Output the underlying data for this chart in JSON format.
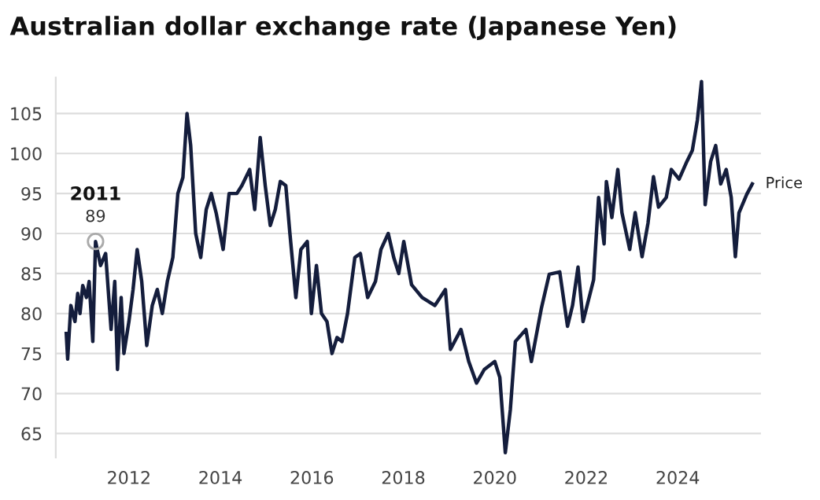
{
  "chart_data": {
    "type": "line",
    "title": "Australian dollar exchange rate (Japanese Yen)",
    "x": [
      2010.63,
      2010.66,
      2010.73,
      2010.82,
      2010.88,
      2010.93,
      2010.99,
      2011.07,
      2011.13,
      2011.21,
      2011.27,
      2011.38,
      2011.49,
      2011.61,
      2011.69,
      2011.75,
      2011.83,
      2011.89,
      2012.0,
      2012.09,
      2012.18,
      2012.28,
      2012.39,
      2012.51,
      2012.62,
      2012.73,
      2012.84,
      2012.96,
      2013.07,
      2013.18,
      2013.27,
      2013.35,
      2013.46,
      2013.57,
      2013.69,
      2013.8,
      2013.91,
      2014.06,
      2014.19,
      2014.36,
      2014.47,
      2014.64,
      2014.75,
      2014.87,
      2014.98,
      2015.09,
      2015.2,
      2015.31,
      2015.43,
      2015.52,
      2015.65,
      2015.76,
      2015.9,
      2015.99,
      2016.1,
      2016.21,
      2016.33,
      2016.44,
      2016.55,
      2016.66,
      2016.78,
      2016.94,
      2017.06,
      2017.22,
      2017.39,
      2017.51,
      2017.67,
      2017.79,
      2017.9,
      2018.01,
      2018.18,
      2018.41,
      2018.69,
      2018.92,
      2019.03,
      2019.26,
      2019.43,
      2019.6,
      2019.77,
      2020.0,
      2020.11,
      2020.23,
      2020.34,
      2020.45,
      2020.68,
      2020.8,
      2021.02,
      2021.19,
      2021.42,
      2021.59,
      2021.7,
      2021.82,
      2021.93,
      2022.16,
      2022.27,
      2022.39,
      2022.44,
      2022.56,
      2022.69,
      2022.78,
      2022.95,
      2023.07,
      2023.22,
      2023.35,
      2023.47,
      2023.58,
      2023.75,
      2023.86,
      2024.03,
      2024.2,
      2024.32,
      2024.43,
      2024.52,
      2024.6,
      2024.72,
      2024.83,
      2024.94,
      2025.06,
      2025.17,
      2025.26,
      2025.34,
      2025.51,
      2025.63
    ],
    "series": [
      {
        "name": "Price",
        "color": "#141d3c",
        "values": [
          77.5,
          74.3,
          81,
          79,
          82.5,
          80,
          83.5,
          82,
          84,
          76.5,
          89,
          86,
          87.5,
          78,
          84,
          73,
          82,
          75,
          79,
          83,
          88,
          84,
          76,
          81,
          83,
          80,
          84,
          87,
          95,
          97,
          105,
          101,
          90,
          87,
          93,
          95,
          92.5,
          88,
          95,
          95,
          96,
          98,
          93,
          102,
          96,
          91,
          93,
          96.5,
          96,
          90,
          82,
          88,
          89,
          80,
          86,
          80,
          79,
          75,
          77,
          76.5,
          80,
          87,
          87.5,
          82,
          84,
          88,
          90,
          87,
          85,
          89,
          83.6,
          82,
          81,
          83,
          75.5,
          78,
          74,
          71.3,
          73,
          74,
          72,
          62.6,
          68,
          76.5,
          78,
          74,
          80.7,
          84.9,
          85.2,
          78.4,
          81,
          85.8,
          79,
          84.2,
          94.5,
          88.7,
          96.5,
          92,
          98,
          92.6,
          88,
          92.6,
          87.1,
          91.3,
          97.1,
          93.3,
          94.5,
          98,
          96.8,
          99,
          100.4,
          104.2,
          109,
          93.6,
          99,
          101,
          96.2,
          98,
          94.5,
          87.1,
          92.6,
          94.9,
          96.2
        ]
      }
    ],
    "xlim": [
      2010.4,
      2025.82
    ],
    "xticks": [
      2012,
      2014,
      2016,
      2018,
      2020,
      2022,
      2024
    ],
    "ylim": [
      62,
      109.5
    ],
    "yticks": [
      65,
      70,
      75,
      80,
      85,
      90,
      95,
      100,
      105
    ],
    "grid": "y",
    "legend": false,
    "marker": "none",
    "line_style": "solid",
    "annotations": [
      {
        "text": "2011",
        "x": 2011.27,
        "y": 89
      },
      {
        "text": "89",
        "x": 2011.27,
        "y": 89
      }
    ]
  }
}
